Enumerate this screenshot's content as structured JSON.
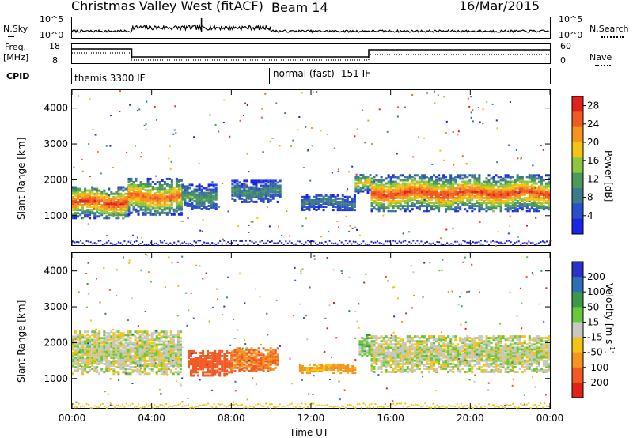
{
  "header": {
    "station": "Christmas Valley West (fitACF)",
    "beam": "Beam 14",
    "date": "16/Mar/2015"
  },
  "strips": {
    "nsky_label": "N.Sky",
    "nsearch_label": "N.Search",
    "nsky_ticks": [
      "10^5",
      "10^0"
    ],
    "nsearch_ticks": [
      "10^5",
      "10^0"
    ],
    "freq_label": "Freq.",
    "freq_unit": "[MHz]",
    "freq_ticks": [
      "18",
      "8"
    ],
    "nave_label": "Nave",
    "nave_ticks": [
      "60",
      "0"
    ],
    "cpid_label": "CPID",
    "cpid_segments": [
      "themis 3300 IF",
      "normal (fast) -151 IF"
    ]
  },
  "chart_data": [
    {
      "type": "heatmap",
      "title": "",
      "xlabel": "Time UT",
      "ylabel": "Slant Range [km]",
      "x_ticks": [
        "00:00",
        "04:00",
        "08:00",
        "12:00",
        "16:00",
        "20:00",
        "00:00"
      ],
      "x_range_hours": [
        0,
        24
      ],
      "y_ticks": [
        1000,
        2000,
        3000,
        4000
      ],
      "ylim": [
        180,
        4500
      ],
      "colorbar_label": "Power [dB]",
      "colorbar_ticks": [
        4,
        8,
        12,
        16,
        20,
        24,
        28
      ],
      "colorbar_range": [
        0,
        30
      ],
      "colors": [
        "#1a24e6",
        "#2b4fc8",
        "#3c7a8c",
        "#4a9a5a",
        "#8ec63f",
        "#f2c413",
        "#f7941d",
        "#f15a24",
        "#e3201b"
      ],
      "echo_regions": [
        {
          "t": [
            0.0,
            2.8
          ],
          "center_km": 1350,
          "width_km": 900,
          "peak_db": 29
        },
        {
          "t": [
            2.8,
            5.5
          ],
          "center_km": 1500,
          "width_km": 1000,
          "peak_db": 26
        },
        {
          "t": [
            5.5,
            7.3
          ],
          "center_km": 1500,
          "width_km": 700,
          "peak_db": 12
        },
        {
          "t": [
            8.0,
            10.5
          ],
          "center_km": 1650,
          "width_km": 600,
          "peak_db": 10
        },
        {
          "t": [
            11.5,
            14.2
          ],
          "center_km": 1350,
          "width_km": 450,
          "peak_db": 8
        },
        {
          "t": [
            14.2,
            15.0
          ],
          "center_km": 1850,
          "width_km": 500,
          "peak_db": 20
        },
        {
          "t": [
            15.0,
            24.0
          ],
          "center_km": 1600,
          "width_km": 1000,
          "peak_db": 28
        }
      ]
    },
    {
      "type": "heatmap",
      "title": "",
      "xlabel": "Time UT",
      "ylabel": "Slant Range [km]",
      "x_ticks": [
        "00:00",
        "04:00",
        "08:00",
        "12:00",
        "16:00",
        "20:00",
        "00:00"
      ],
      "x_range_hours": [
        0,
        24
      ],
      "y_ticks": [
        1000,
        2000,
        3000,
        4000
      ],
      "ylim": [
        180,
        4500
      ],
      "colorbar_label": "Velocity [m s^-1]",
      "colorbar_ticks": [
        200,
        100,
        50,
        15,
        -15,
        -50,
        -100,
        -200
      ],
      "colorbar_range": [
        -250,
        250
      ],
      "colors": [
        "#2832c8",
        "#2f6db5",
        "#3a9a4a",
        "#6ac63f",
        "#c8c8c0",
        "#f2c413",
        "#f7941d",
        "#f15a24",
        "#e3201b"
      ],
      "echo_regions": [
        {
          "t": [
            0.0,
            5.5
          ],
          "center_km": 1700,
          "width_km": 1200,
          "velocity": 0
        },
        {
          "t": [
            5.8,
            8.0
          ],
          "center_km": 1400,
          "width_km": 700,
          "velocity": -150
        },
        {
          "t": [
            8.0,
            10.3
          ],
          "center_km": 1500,
          "width_km": 650,
          "velocity": -100
        },
        {
          "t": [
            11.4,
            14.2
          ],
          "center_km": 1250,
          "width_km": 250,
          "velocity": -60
        },
        {
          "t": [
            14.4,
            14.9
          ],
          "center_km": 1900,
          "width_km": 600,
          "velocity": 30
        },
        {
          "t": [
            15.0,
            24.0
          ],
          "center_km": 1650,
          "width_km": 1000,
          "velocity": 0
        }
      ]
    }
  ]
}
